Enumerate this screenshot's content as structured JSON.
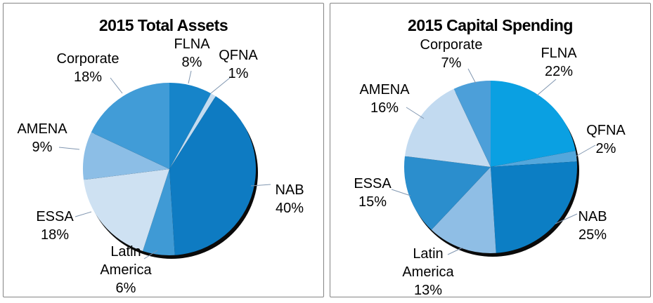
{
  "colors": {
    "panel_border": "#848484",
    "leader_line": "#8096B0",
    "shadow": "#0a0a0a",
    "background": "#ffffff",
    "text": "#000000"
  },
  "chart_data": [
    {
      "type": "pie",
      "title": "2015 Total Assets",
      "start_angle_deg": 0,
      "direction": "clockwise",
      "legend": "none",
      "labels_style": "outside-with-leader-lines",
      "slices": [
        {
          "label": "FLNA",
          "value_pct": 8,
          "display": "8%",
          "color": "#1684C9"
        },
        {
          "label": "QFNA",
          "value_pct": 1,
          "display": "1%",
          "color": "#C3DCF1"
        },
        {
          "label": "NAB",
          "value_pct": 40,
          "display": "40%",
          "color": "#0E7BC2"
        },
        {
          "label": "Latin America",
          "value_pct": 6,
          "display": "6%",
          "color": "#3F9AD5"
        },
        {
          "label": "ESSA",
          "value_pct": 18,
          "display": "18%",
          "color": "#CEE1F2"
        },
        {
          "label": "AMENA",
          "value_pct": 9,
          "display": "9%",
          "color": "#8CBEE6"
        },
        {
          "label": "Corporate",
          "value_pct": 18,
          "display": "18%",
          "color": "#419CD7"
        }
      ]
    },
    {
      "type": "pie",
      "title": "2015 Capital Spending",
      "start_angle_deg": 0,
      "direction": "clockwise",
      "legend": "none",
      "labels_style": "outside-with-leader-lines",
      "slices": [
        {
          "label": "FLNA",
          "value_pct": 22,
          "display": "22%",
          "color": "#0AA0E2"
        },
        {
          "label": "QFNA",
          "value_pct": 2,
          "display": "2%",
          "color": "#54A7DC"
        },
        {
          "label": "NAB",
          "value_pct": 25,
          "display": "25%",
          "color": "#0C7EC4"
        },
        {
          "label": "Latin America",
          "value_pct": 13,
          "display": "13%",
          "color": "#8FBEE5"
        },
        {
          "label": "ESSA",
          "value_pct": 15,
          "display": "15%",
          "color": "#2B8ECD"
        },
        {
          "label": "AMENA",
          "value_pct": 16,
          "display": "16%",
          "color": "#C2DAF0"
        },
        {
          "label": "Corporate",
          "value_pct": 7,
          "display": "7%",
          "color": "#4C9FD9"
        }
      ]
    }
  ]
}
